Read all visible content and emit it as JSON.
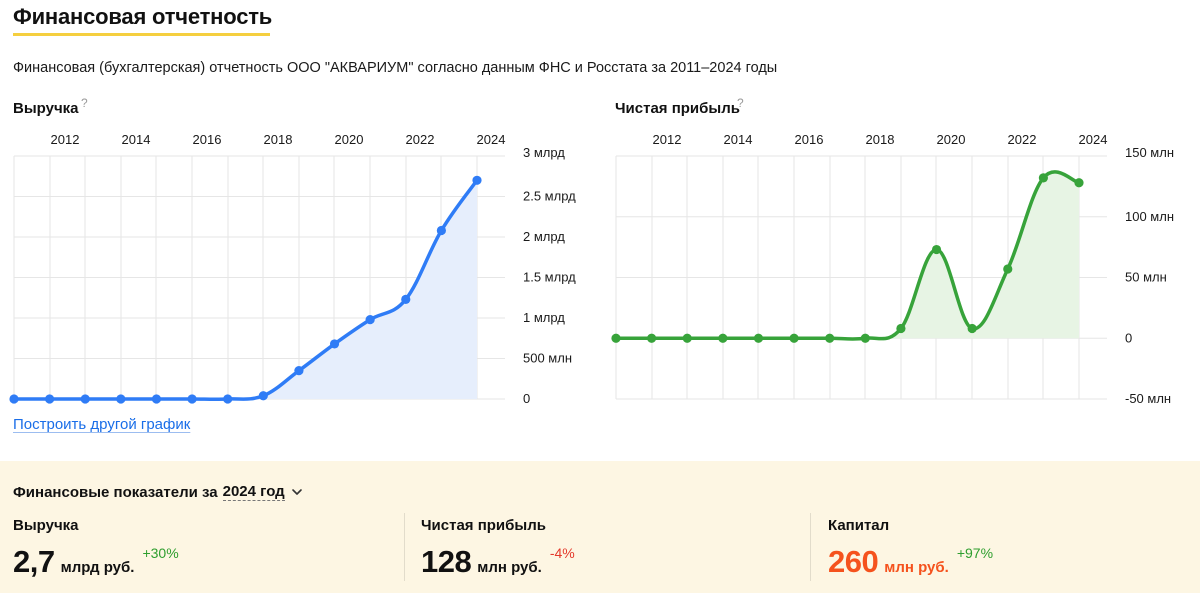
{
  "page": {
    "title": "Финансовая отчетность",
    "subtitle": "Финансовая (бухгалтерская) отчетность ООО \"АКВАРИУМ\" согласно данным ФНС и Росстата за 2011–2024 годы",
    "help_mark": "?",
    "link_another_chart": "Построить другой график"
  },
  "colors": {
    "title_underline": "#f5cf3f",
    "revenue_line": "#2f7cf6",
    "revenue_fill": "#e6eefc",
    "profit_line": "#37a33a",
    "profit_fill": "#e7f4e4",
    "gridline": "#e6e6e6",
    "panel_bg": "#fdf6e3",
    "accent_value": "#f5521d",
    "positive_change": "#2e9e2e",
    "negative_change": "#e4392b",
    "link": "#1a6ee8"
  },
  "chart_data": [
    {
      "type": "area",
      "title": "Выручка",
      "x": [
        2011,
        2012,
        2013,
        2014,
        2015,
        2016,
        2017,
        2018,
        2019,
        2020,
        2021,
        2022,
        2023,
        2024
      ],
      "x_tick_labels": [
        "2012",
        "2014",
        "2016",
        "2018",
        "2020",
        "2022",
        "2024"
      ],
      "y_tick_labels": [
        "3 млрд",
        "2.5 млрд",
        "2 млрд",
        "1.5 млрд",
        "1 млрд",
        "500 млн",
        "0"
      ],
      "ylim": [
        0,
        3000
      ],
      "y_unit": "млн руб.",
      "values": [
        0,
        0,
        0,
        0,
        0,
        0,
        0,
        40,
        350,
        680,
        980,
        1230,
        2080,
        2700
      ],
      "grid": true
    },
    {
      "type": "area",
      "title": "Чистая прибыль",
      "x": [
        2011,
        2012,
        2013,
        2014,
        2015,
        2016,
        2017,
        2018,
        2019,
        2020,
        2021,
        2022,
        2023,
        2024
      ],
      "x_tick_labels": [
        "2012",
        "2014",
        "2016",
        "2018",
        "2020",
        "2022",
        "2024"
      ],
      "y_tick_labels": [
        "150 млн",
        "100 млн",
        "50 млн",
        "0",
        "-50 млн"
      ],
      "ylim": [
        -50,
        150
      ],
      "y_unit": "млн руб.",
      "values": [
        0,
        0,
        0,
        0,
        0,
        0,
        0,
        0,
        8,
        73,
        8,
        57,
        132,
        128
      ],
      "grid": true
    }
  ],
  "indicators": {
    "heading": "Финансовые показатели за",
    "year": "2024 год",
    "items": [
      {
        "label": "Выручка",
        "value": "2,7",
        "unit": "млрд руб.",
        "change": "+30%",
        "direction": "up",
        "accent": false
      },
      {
        "label": "Чистая прибыль",
        "value": "128",
        "unit": "млн руб.",
        "change": "-4%",
        "direction": "down",
        "accent": false
      },
      {
        "label": "Капитал",
        "value": "260",
        "unit": "млн руб.",
        "change": "+97%",
        "direction": "up",
        "accent": true
      }
    ]
  }
}
